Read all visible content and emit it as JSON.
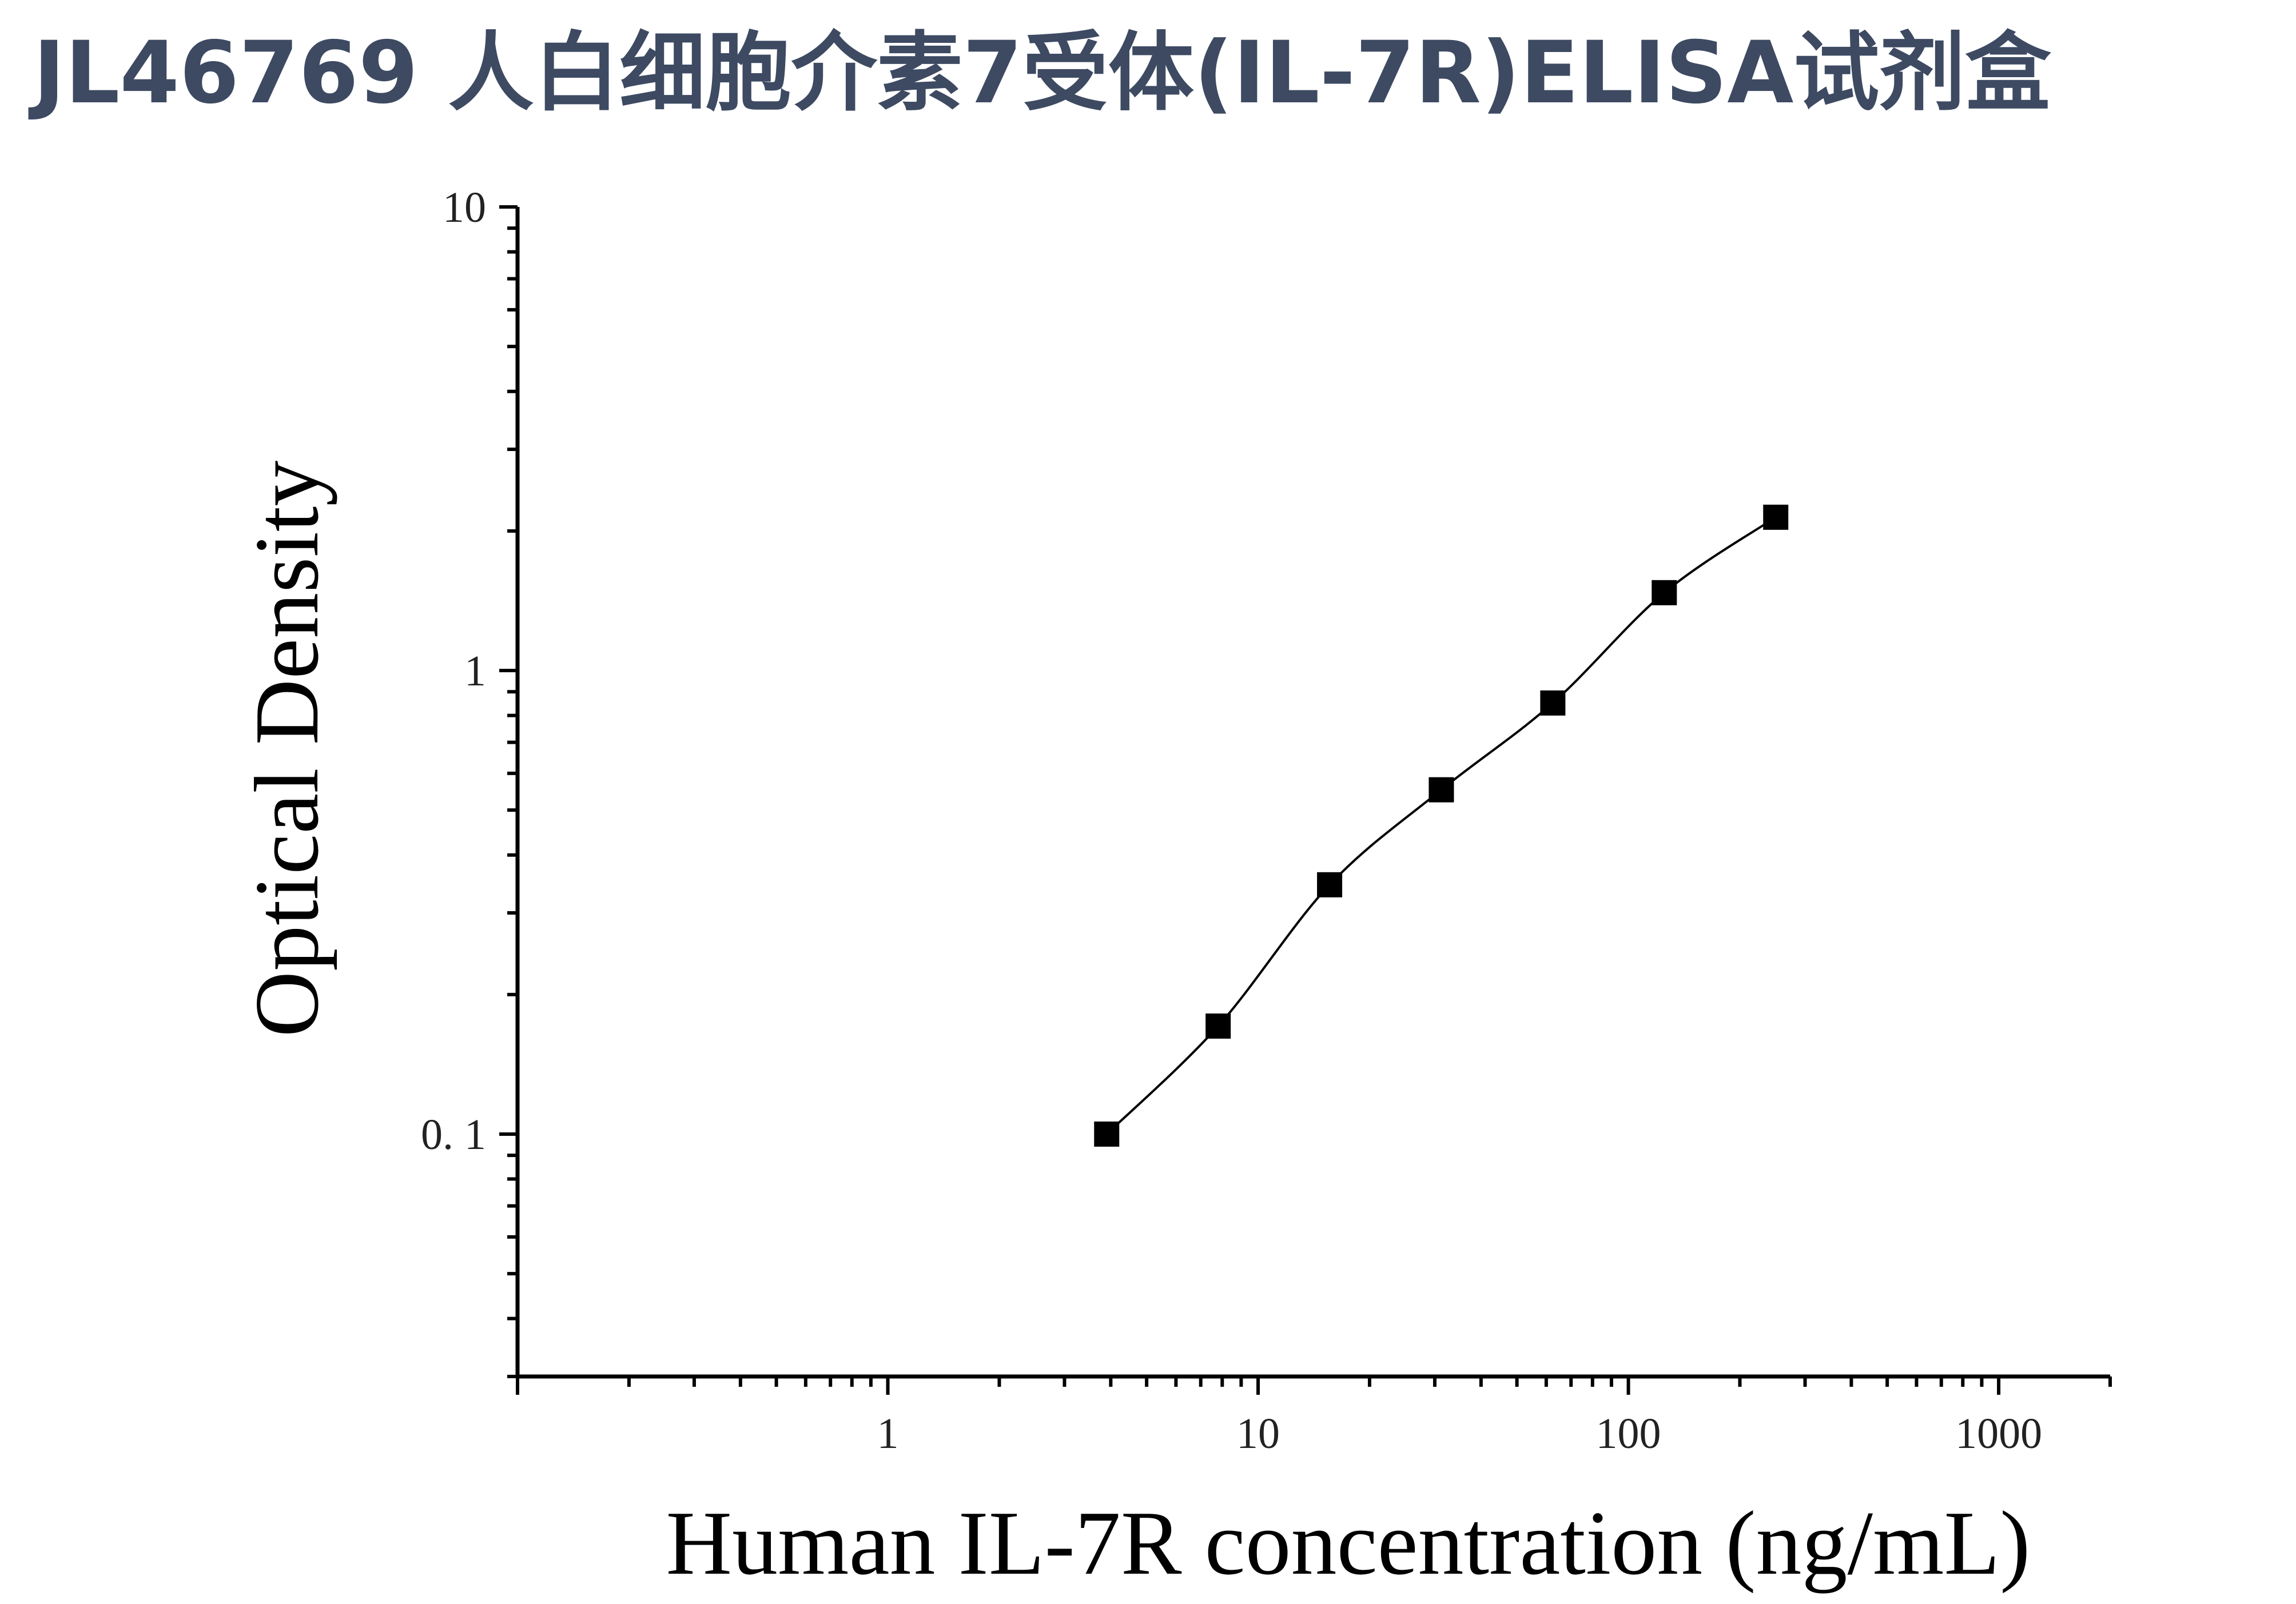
{
  "page_title": "JL46769 人白细胞介素7受体(IL-7R)ELISA试剂盒",
  "chart_data": {
    "type": "scatter",
    "title": "",
    "xlabel": "Human IL-7R concentration (ng/mL)",
    "ylabel": "Optical Density",
    "xscale": "log",
    "yscale": "log",
    "xlim": [
      0.1,
      2000
    ],
    "ylim": [
      0.03,
      10
    ],
    "x_ticks": [
      1,
      10,
      100,
      1000
    ],
    "x_tick_labels": [
      "1",
      "10",
      "100",
      "1000"
    ],
    "y_ticks": [
      0.1,
      1,
      10
    ],
    "y_tick_labels": [
      "0. 1",
      "1",
      "10"
    ],
    "grid": false,
    "legend": "none",
    "marker": "square",
    "colors": {
      "marker": "#000000",
      "curve": "#000000",
      "axis": "#000000"
    },
    "series": [
      {
        "x": [
          3.9,
          7.8,
          15.6,
          31.25,
          62.5,
          125,
          250
        ],
        "y": [
          0.1,
          0.171,
          0.345,
          0.553,
          0.851,
          1.472,
          2.141
        ]
      }
    ]
  }
}
